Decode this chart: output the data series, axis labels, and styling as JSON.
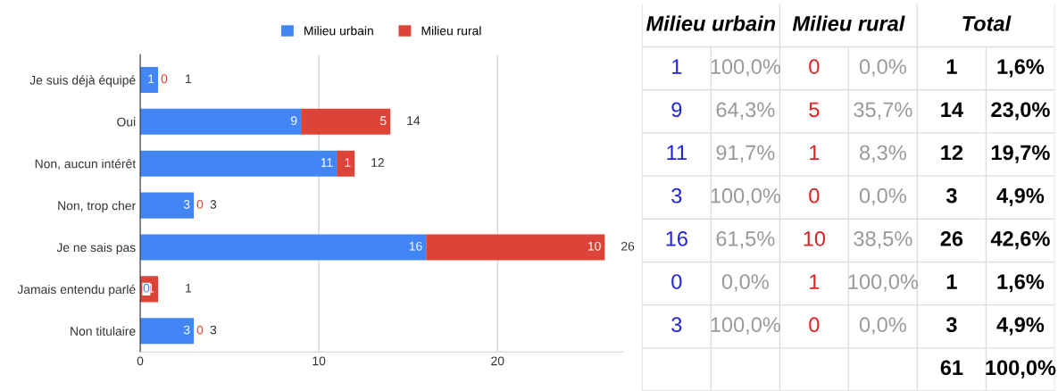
{
  "chart_data": [
    {
      "type": "bar",
      "orientation": "horizontal",
      "stacked": true,
      "categories": [
        "Je suis déjà équipé",
        "Oui",
        "Non, aucun intérêt",
        "Non, trop cher",
        "Je ne sais pas",
        "Jamais entendu parlé",
        "Non titulaire"
      ],
      "series": [
        {
          "name": "Milieu urbain",
          "color": "#4285f4",
          "values": [
            1,
            9,
            11,
            3,
            16,
            0,
            3
          ]
        },
        {
          "name": "Milieu rural",
          "color": "#db4437",
          "values": [
            0,
            5,
            1,
            0,
            10,
            1,
            0
          ]
        }
      ],
      "totals": [
        "1",
        "14",
        "12",
        "3",
        "26",
        "1",
        "3"
      ],
      "data_labels": true,
      "xlim": [
        0,
        27
      ],
      "xticks": [
        0,
        10,
        20
      ],
      "grid": "x",
      "legend": "top"
    },
    {
      "type": "other",
      "annotations": [
        "Milieu urbain",
        "Milieu rural",
        "Total",
        "1",
        "100,0%",
        "0",
        "0,0%",
        "1",
        "1,6%",
        "9",
        "64,3%",
        "5",
        "35,7%",
        "14",
        "23,0%",
        "11",
        "91,7%",
        "1",
        "8,3%",
        "12",
        "19,7%",
        "3",
        "100,0%",
        "0",
        "0,0%",
        "3",
        "4,9%",
        "16",
        "61,5%",
        "10",
        "38,5%",
        "26",
        "42,6%",
        "0",
        "0,0%",
        "1",
        "100,0%",
        "1",
        "1,6%",
        "3",
        "100,0%",
        "0",
        "0,0%",
        "3",
        "4,9%",
        "61",
        "100,0%"
      ]
    }
  ]
}
